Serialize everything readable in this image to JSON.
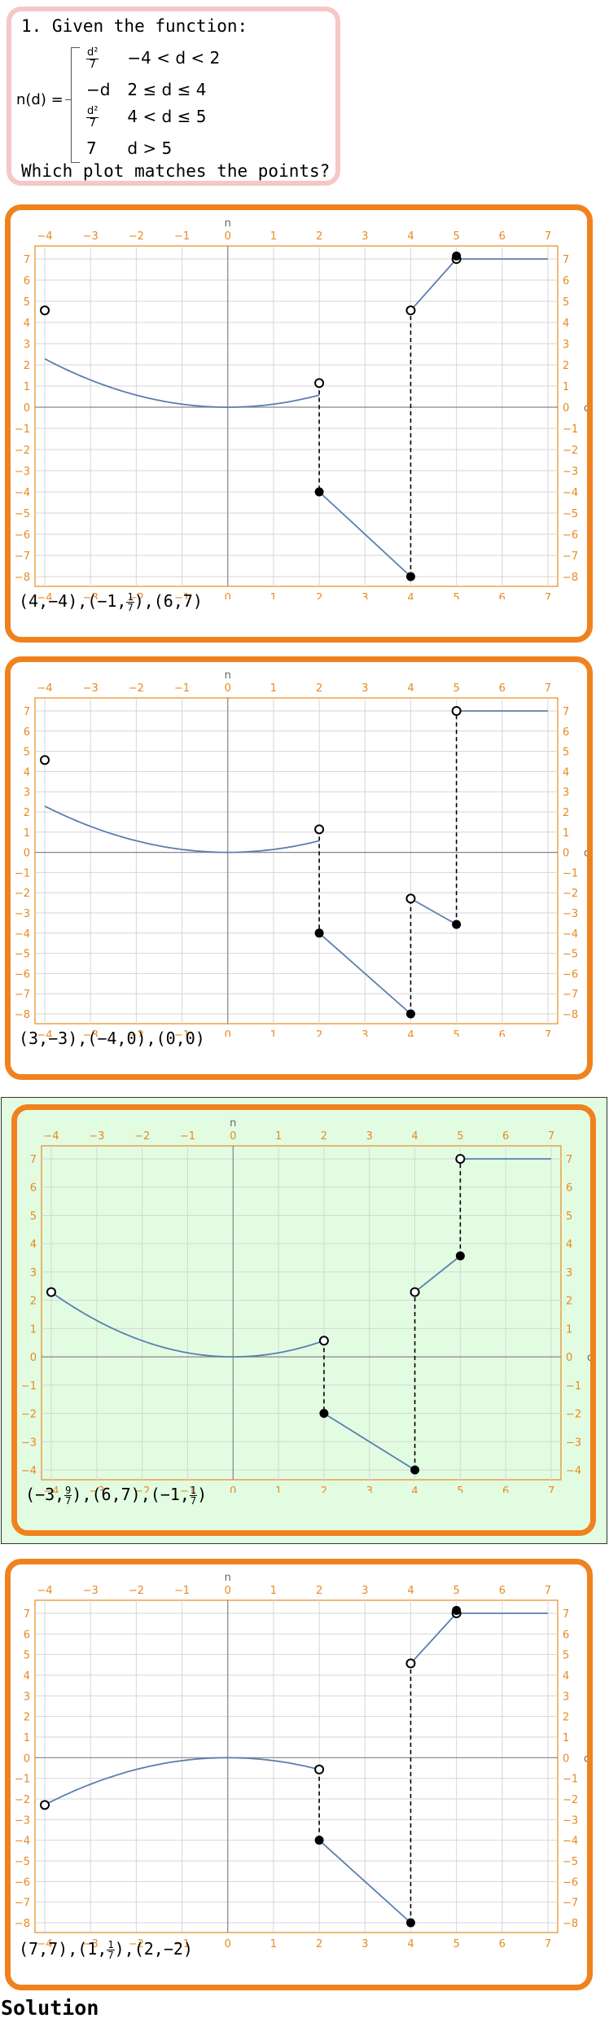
{
  "question": {
    "title": "1. Given the function:",
    "func_name": "n(d) =",
    "cases": [
      {
        "expr_num": "d²",
        "expr_den": "7",
        "cond": "−4 < d < 2"
      },
      {
        "expr": "−d",
        "cond": "2 ≤ d ≤ 4"
      },
      {
        "expr_num": "d²",
        "expr_den": "7",
        "cond": "4 < d ≤ 5"
      },
      {
        "expr": "7",
        "cond": "d > 5"
      }
    ],
    "prompt": "Which plot matches the points?"
  },
  "axis": {
    "xlabel": "d",
    "ylabel": "n",
    "x_ticks": [
      "−4",
      "−3",
      "−2",
      "−1",
      "0",
      "1",
      "2",
      "3",
      "4",
      "5",
      "6",
      "7"
    ]
  },
  "options": [
    {
      "correct": false,
      "points_parts": [
        "(4,−4),(−1,",
        {
          "num": "1",
          "den": "7"
        },
        "),(6,7)"
      ],
      "chart_data": {
        "type": "line",
        "xlim": [
          -4,
          7
        ],
        "ylim": [
          -8,
          7
        ],
        "y_ticks": [
          -8,
          -7,
          -6,
          -5,
          -4,
          -3,
          -2,
          -1,
          0,
          1,
          2,
          3,
          4,
          5,
          6,
          7
        ],
        "curves": [
          {
            "kind": "parabola",
            "x0": -4,
            "x1": 2,
            "scale": 0.142857
          },
          {
            "kind": "segment",
            "p0": [
              2,
              -4
            ],
            "p1": [
              4,
              -8
            ]
          },
          {
            "kind": "segment",
            "p0": [
              4,
              4.57
            ],
            "p1": [
              5,
              7
            ]
          },
          {
            "kind": "segment",
            "p0": [
              5,
              7
            ],
            "p1": [
              7,
              7
            ]
          }
        ],
        "dashed": [
          [
            2,
            1.14,
            2,
            -4
          ],
          [
            4,
            -8,
            4,
            4.57
          ]
        ],
        "open_points": [
          [
            -4,
            4.57
          ],
          [
            2,
            1.14
          ],
          [
            4,
            4.57
          ],
          [
            5,
            7
          ]
        ],
        "closed_points": [
          [
            2,
            -4
          ],
          [
            4,
            -8
          ],
          [
            5,
            7.14
          ]
        ]
      }
    },
    {
      "correct": false,
      "points_parts": [
        "(3,−3),(−4,0),(0,0)"
      ],
      "chart_data": {
        "type": "line",
        "xlim": [
          -4,
          7
        ],
        "ylim": [
          -8,
          7
        ],
        "y_ticks": [
          -8,
          -7,
          -6,
          -5,
          -4,
          -3,
          -2,
          -1,
          0,
          1,
          2,
          3,
          4,
          5,
          6,
          7
        ],
        "curves": [
          {
            "kind": "parabola",
            "x0": -4,
            "x1": 2,
            "scale": 0.142857
          },
          {
            "kind": "segment",
            "p0": [
              2,
              -4
            ],
            "p1": [
              4,
              -8
            ]
          },
          {
            "kind": "segment",
            "p0": [
              4,
              -2.29
            ],
            "p1": [
              5,
              -3.57
            ]
          },
          {
            "kind": "segment",
            "p0": [
              5,
              7
            ],
            "p1": [
              7,
              7
            ]
          }
        ],
        "dashed": [
          [
            2,
            1.14,
            2,
            -4
          ],
          [
            4,
            -8,
            4,
            -2.29
          ],
          [
            5,
            -3.57,
            5,
            7
          ]
        ],
        "open_points": [
          [
            -4,
            4.57
          ],
          [
            2,
            1.14
          ],
          [
            4,
            -2.29
          ],
          [
            5,
            7
          ]
        ],
        "closed_points": [
          [
            2,
            -4
          ],
          [
            4,
            -8
          ],
          [
            5,
            -3.57
          ]
        ]
      }
    },
    {
      "correct": true,
      "points_parts": [
        "(−3,",
        {
          "num": "9",
          "den": "7"
        },
        "),(6,7),(−1,",
        {
          "num": "1",
          "den": "7"
        },
        ")"
      ],
      "chart_data": {
        "type": "line",
        "xlim": [
          -4,
          7
        ],
        "ylim": [
          -4,
          7
        ],
        "y_ticks": [
          -4,
          -3,
          -2,
          -1,
          0,
          1,
          2,
          3,
          4,
          5,
          6,
          7
        ],
        "curves": [
          {
            "kind": "parabola",
            "x0": -4,
            "x1": 2,
            "scale": 0.142857
          },
          {
            "kind": "segment",
            "p0": [
              2,
              -2
            ],
            "p1": [
              4,
              -4
            ]
          },
          {
            "kind": "segment",
            "p0": [
              4,
              2.29
            ],
            "p1": [
              5,
              3.57
            ]
          },
          {
            "kind": "segment",
            "p0": [
              5,
              7
            ],
            "p1": [
              7,
              7
            ]
          }
        ],
        "dashed": [
          [
            2,
            0.57,
            2,
            -2
          ],
          [
            4,
            -4,
            4,
            2.29
          ],
          [
            5,
            3.57,
            5,
            7
          ]
        ],
        "open_points": [
          [
            -4,
            2.29
          ],
          [
            2,
            0.57
          ],
          [
            4,
            2.29
          ],
          [
            5,
            7
          ]
        ],
        "closed_points": [
          [
            2,
            -2
          ],
          [
            4,
            -4
          ],
          [
            5,
            3.57
          ]
        ]
      }
    },
    {
      "correct": false,
      "points_parts": [
        "(7,7),(1,",
        {
          "num": "1",
          "den": "7"
        },
        "),(2,−2)"
      ],
      "chart_data": {
        "type": "line",
        "xlim": [
          -4,
          7
        ],
        "ylim": [
          -8,
          7
        ],
        "y_ticks": [
          -8,
          -7,
          -6,
          -5,
          -4,
          -3,
          -2,
          -1,
          0,
          1,
          2,
          3,
          4,
          5,
          6,
          7
        ],
        "curves": [
          {
            "kind": "parabola",
            "x0": -4,
            "x1": 2,
            "scale": -0.142857
          },
          {
            "kind": "segment",
            "p0": [
              2,
              -4
            ],
            "p1": [
              4,
              -8
            ]
          },
          {
            "kind": "segment",
            "p0": [
              4,
              4.57
            ],
            "p1": [
              5,
              7
            ]
          },
          {
            "kind": "segment",
            "p0": [
              5,
              7
            ],
            "p1": [
              7,
              7
            ]
          }
        ],
        "dashed": [
          [
            2,
            -0.57,
            2,
            -4
          ],
          [
            4,
            -8,
            4,
            4.57
          ]
        ],
        "open_points": [
          [
            -4,
            -2.29
          ],
          [
            2,
            -0.57
          ],
          [
            4,
            4.57
          ],
          [
            5,
            7
          ]
        ],
        "closed_points": [
          [
            2,
            -4
          ],
          [
            4,
            -8
          ],
          [
            5,
            7.14
          ]
        ]
      }
    }
  ],
  "solution_label": "Solution"
}
